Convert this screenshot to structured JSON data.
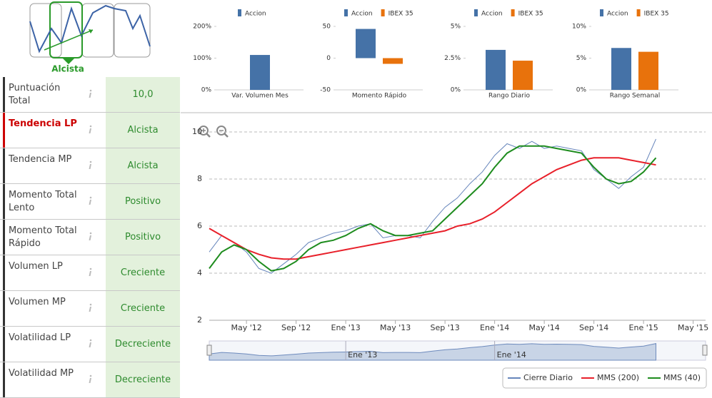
{
  "trend_icon": {
    "label": "Alcista"
  },
  "table": {
    "rows": [
      {
        "label": "Puntuación Total",
        "value": "10,0"
      },
      {
        "label": "Tendencia LP",
        "value": "Alcista",
        "label_color": "#cc0000"
      },
      {
        "label": "Tendencia MP",
        "value": "Alcista"
      },
      {
        "label": "Momento Total Lento",
        "value": "Positivo"
      },
      {
        "label": "Momento Total Rápido",
        "value": "Positivo"
      },
      {
        "label": "Volumen LP",
        "value": "Creciente"
      },
      {
        "label": "Volumen MP",
        "value": "Creciente"
      },
      {
        "label": "Volatilidad LP",
        "value": "Decreciente"
      },
      {
        "label": "Volatilidad MP",
        "value": "Decreciente"
      }
    ]
  },
  "chart_data": [
    {
      "type": "bar",
      "categories": [
        "Var. Volumen Mes"
      ],
      "series": [
        {
          "name": "Accion",
          "color": "#4572a7",
          "values": [
            110
          ]
        }
      ],
      "ylim": [
        0,
        200
      ],
      "yticks": [
        {
          "value": 0,
          "label": "0%"
        },
        {
          "value": 100,
          "label": "100%"
        },
        {
          "value": 200,
          "label": "200%"
        }
      ]
    },
    {
      "type": "bar",
      "categories": [
        "Momento Rápido"
      ],
      "series": [
        {
          "name": "Accion",
          "color": "#4572a7",
          "values": [
            46
          ]
        },
        {
          "name": "IBEX 35",
          "color": "#e8720c",
          "values": [
            -9
          ]
        }
      ],
      "ylim": [
        -50,
        50
      ],
      "yticks": [
        -50,
        0,
        50
      ]
    },
    {
      "type": "bar",
      "categories": [
        "Rango Diario"
      ],
      "series": [
        {
          "name": "Accion",
          "color": "#4572a7",
          "values": [
            3.15
          ]
        },
        {
          "name": "IBEX 35",
          "color": "#e8720c",
          "values": [
            2.3
          ]
        }
      ],
      "ylim": [
        0,
        5
      ],
      "yticks": [
        {
          "value": 0,
          "label": "0%"
        },
        {
          "value": 2.5,
          "label": "2.5%"
        },
        {
          "value": 5,
          "label": "5%"
        }
      ]
    },
    {
      "type": "bar",
      "categories": [
        "Rango Semanal"
      ],
      "series": [
        {
          "name": "Accion",
          "color": "#4572a7",
          "values": [
            6.6
          ]
        },
        {
          "name": "IBEX 35",
          "color": "#e8720c",
          "values": [
            6.0
          ]
        }
      ],
      "ylim": [
        0,
        10
      ],
      "yticks": [
        {
          "value": 0,
          "label": "0%"
        },
        {
          "value": 5,
          "label": "5%"
        },
        {
          "value": 10,
          "label": "10%"
        }
      ]
    },
    {
      "type": "line",
      "x": [
        "2012-02",
        "2012-03",
        "2012-04",
        "2012-05",
        "2012-06",
        "2012-07",
        "2012-08",
        "2012-09",
        "2012-10",
        "2012-11",
        "2012-12",
        "2013-01",
        "2013-02",
        "2013-03",
        "2013-04",
        "2013-05",
        "2013-06",
        "2013-07",
        "2013-08",
        "2013-09",
        "2013-10",
        "2013-11",
        "2013-12",
        "2014-01",
        "2014-02",
        "2014-03",
        "2014-04",
        "2014-05",
        "2014-06",
        "2014-07",
        "2014-08",
        "2014-09",
        "2014-10",
        "2014-11",
        "2014-12",
        "2015-01",
        "2015-02"
      ],
      "series": [
        {
          "name": "Cierre Diario",
          "color": "#6685bb",
          "values": [
            4.9,
            5.6,
            5.3,
            4.9,
            4.2,
            4.0,
            4.4,
            4.8,
            5.3,
            5.5,
            5.7,
            5.8,
            6.0,
            6.1,
            5.5,
            5.6,
            5.6,
            5.5,
            6.2,
            6.8,
            7.2,
            7.8,
            8.3,
            9.0,
            9.5,
            9.3,
            9.6,
            9.3,
            9.4,
            9.3,
            9.2,
            8.4,
            8.0,
            7.6,
            8.1,
            8.5,
            9.7
          ]
        },
        {
          "name": "MMS (200)",
          "color": "#e8202a",
          "values": [
            5.9,
            5.6,
            5.3,
            5.0,
            4.8,
            4.65,
            4.6,
            4.6,
            4.7,
            4.8,
            4.9,
            5.0,
            5.1,
            5.2,
            5.3,
            5.4,
            5.5,
            5.6,
            5.7,
            5.8,
            6.0,
            6.1,
            6.3,
            6.6,
            7.0,
            7.4,
            7.8,
            8.1,
            8.4,
            8.6,
            8.8,
            8.9,
            8.9,
            8.9,
            8.8,
            8.7,
            8.6
          ]
        },
        {
          "name": "MMS (40)",
          "color": "#1e8c1e",
          "values": [
            4.2,
            4.9,
            5.2,
            5.0,
            4.5,
            4.1,
            4.2,
            4.5,
            5.0,
            5.3,
            5.4,
            5.6,
            5.9,
            6.1,
            5.8,
            5.6,
            5.6,
            5.7,
            5.8,
            6.3,
            6.8,
            7.3,
            7.8,
            8.5,
            9.1,
            9.4,
            9.4,
            9.4,
            9.3,
            9.2,
            9.1,
            8.5,
            8.0,
            7.8,
            7.9,
            8.3,
            8.9
          ]
        }
      ],
      "xlim": [
        "2012-02",
        "2015-06"
      ],
      "xticks": [
        {
          "value": "2012-05",
          "label": "May '12"
        },
        {
          "value": "2012-09",
          "label": "Sep '12"
        },
        {
          "value": "2013-01",
          "label": "Ene '13"
        },
        {
          "value": "2013-05",
          "label": "May '13"
        },
        {
          "value": "2013-09",
          "label": "Sep '13"
        },
        {
          "value": "2014-01",
          "label": "Ene '14"
        },
        {
          "value": "2014-05",
          "label": "May '14"
        },
        {
          "value": "2014-09",
          "label": "Sep '14"
        },
        {
          "value": "2015-01",
          "label": "Ene '15"
        },
        {
          "value": "2015-05",
          "label": "May '15"
        }
      ],
      "ylim": [
        2,
        10
      ],
      "yticks": [
        2,
        4,
        6,
        8,
        10
      ],
      "grid": true,
      "navigator_ticks": [
        {
          "value": "2013-01",
          "label": "Ene '13"
        },
        {
          "value": "2014-01",
          "label": "Ene '14"
        }
      ],
      "legend": "bottom-right"
    }
  ]
}
